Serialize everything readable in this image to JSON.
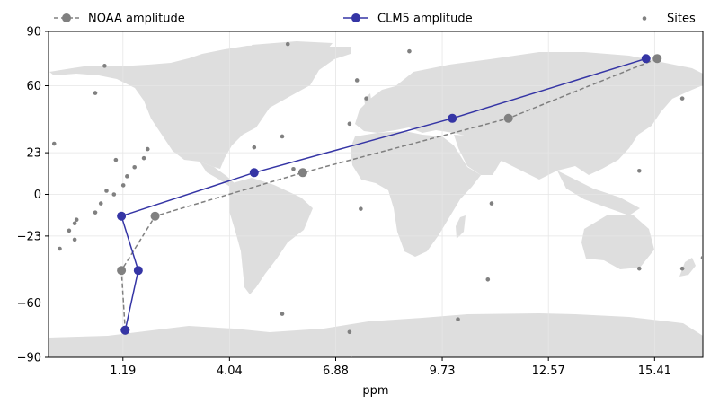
{
  "chart_data": {
    "type": "line",
    "xlabel": "ppm",
    "ylabel": "",
    "x_ticks": [
      "1.19",
      "4.04",
      "6.88",
      "9.73",
      "12.57",
      "15.41"
    ],
    "y_ticks": [
      "90",
      "60",
      "23",
      "0",
      "−23",
      "−60",
      "−90"
    ],
    "x_tick_values": [
      1.19,
      4.04,
      6.88,
      9.73,
      12.57,
      15.41
    ],
    "y_tick_values": [
      90,
      60,
      23,
      0,
      -23,
      -60,
      -90
    ],
    "xlim": [
      -0.8,
      16.7
    ],
    "ylim": [
      -90,
      90
    ],
    "background": "world map (land masses, light grey)",
    "grid": true,
    "legend_position": "top",
    "series": [
      {
        "name": "NOAA amplitude",
        "style": "dashed",
        "color": "#808080",
        "points": [
          {
            "x": 15.48,
            "y": 75
          },
          {
            "x": 11.5,
            "y": 42
          },
          {
            "x": 6.0,
            "y": 12
          },
          {
            "x": 2.05,
            "y": -12
          },
          {
            "x": 1.15,
            "y": -42
          },
          {
            "x": 1.25,
            "y": -75
          }
        ]
      },
      {
        "name": "CLM5 amplitude",
        "style": "solid",
        "color": "#3535a5",
        "points": [
          {
            "x": 15.18,
            "y": 75
          },
          {
            "x": 10.0,
            "y": 42
          },
          {
            "x": 4.7,
            "y": 12
          },
          {
            "x": 1.15,
            "y": -12
          },
          {
            "x": 1.6,
            "y": -42
          },
          {
            "x": 1.25,
            "y": -75
          }
        ]
      },
      {
        "name": "Sites",
        "style": "scatter",
        "color": "#808080",
        "points": [
          {
            "x": 0.7,
            "y": 71
          },
          {
            "x": 0.45,
            "y": 56
          },
          {
            "x": -0.65,
            "y": 28
          },
          {
            "x": 1.0,
            "y": 19
          },
          {
            "x": 1.5,
            "y": 15
          },
          {
            "x": 1.3,
            "y": 10
          },
          {
            "x": 1.2,
            "y": 5
          },
          {
            "x": 0.75,
            "y": 2
          },
          {
            "x": 0.95,
            "y": 0
          },
          {
            "x": 0.6,
            "y": -5
          },
          {
            "x": 0.45,
            "y": -10
          },
          {
            "x": -0.05,
            "y": -14
          },
          {
            "x": -0.1,
            "y": -16
          },
          {
            "x": -0.25,
            "y": -20
          },
          {
            "x": -0.1,
            "y": -25
          },
          {
            "x": -0.5,
            "y": -30
          },
          {
            "x": 1.75,
            "y": 20
          },
          {
            "x": 1.85,
            "y": 25
          },
          {
            "x": 4.7,
            "y": 26
          },
          {
            "x": 5.45,
            "y": 32
          },
          {
            "x": 5.6,
            "y": 83
          },
          {
            "x": 5.75,
            "y": 14
          },
          {
            "x": 5.45,
            "y": -66
          },
          {
            "x": 7.25,
            "y": 39
          },
          {
            "x": 7.45,
            "y": 63
          },
          {
            "x": 7.7,
            "y": 53
          },
          {
            "x": 7.55,
            "y": -8
          },
          {
            "x": 8.85,
            "y": 79
          },
          {
            "x": 7.25,
            "y": -76
          },
          {
            "x": 7.3,
            "y": -91
          },
          {
            "x": 10.15,
            "y": -69
          },
          {
            "x": 10.95,
            "y": -47
          },
          {
            "x": 11.05,
            "y": -5
          },
          {
            "x": 15.0,
            "y": 13
          },
          {
            "x": 15.0,
            "y": -41
          },
          {
            "x": 16.15,
            "y": 53
          },
          {
            "x": 16.15,
            "y": -41
          },
          {
            "x": 16.7,
            "y": -35
          }
        ]
      }
    ]
  },
  "legend": {
    "noaa_label": "NOAA amplitude",
    "clm5_label": "CLM5 amplitude",
    "sites_label": "Sites"
  },
  "colors": {
    "noaa": "#808080",
    "clm5": "#3535a5",
    "sites": "#808080",
    "land": "#dedede",
    "grid": "#e6e6e6"
  }
}
